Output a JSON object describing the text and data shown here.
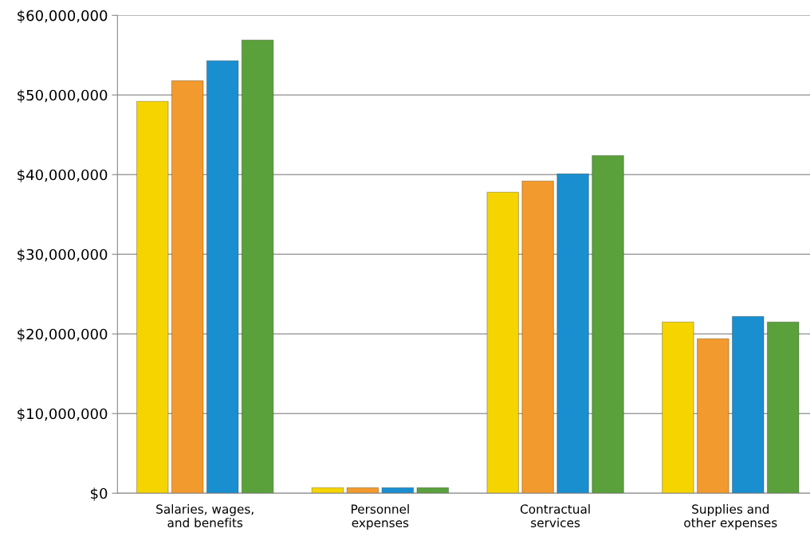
{
  "chart_data": {
    "type": "bar",
    "categories": [
      "Salaries, wages,\nand benefits",
      "Personnel\nexpenses",
      "Contractual\nservices",
      "Supplies and\nother expenses"
    ],
    "series": [
      {
        "color": "#f5d400",
        "values": [
          49200000,
          700000,
          37800000,
          21500000
        ]
      },
      {
        "color": "#f39a2e",
        "values": [
          51800000,
          700000,
          39200000,
          19400000
        ]
      },
      {
        "color": "#1a8fd0",
        "values": [
          54300000,
          700000,
          40100000,
          22200000
        ]
      },
      {
        "color": "#5aa13c",
        "values": [
          56900000,
          700000,
          42400000,
          21500000
        ]
      }
    ],
    "ylim": [
      0,
      60000000
    ],
    "yticks": [
      {
        "value": 0,
        "label": "$0"
      },
      {
        "value": 10000000,
        "label": "$10,000,000"
      },
      {
        "value": 20000000,
        "label": "$20,000,000"
      },
      {
        "value": 30000000,
        "label": "$30,000,000"
      },
      {
        "value": 40000000,
        "label": "$40,000,000"
      },
      {
        "value": 50000000,
        "label": "$50,000,000"
      },
      {
        "value": 60000000,
        "label": "$60,000,000"
      }
    ],
    "grid": "y"
  }
}
